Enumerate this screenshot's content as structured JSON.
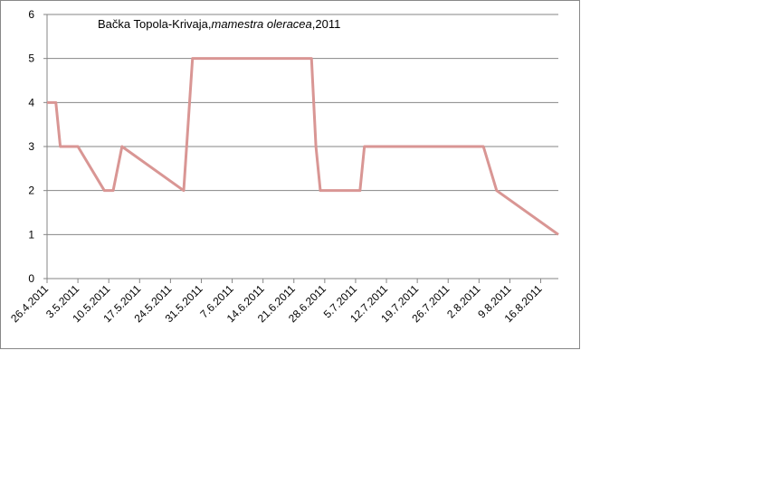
{
  "chart_data": {
    "type": "line",
    "title": [
      {
        "text": "Bačka Topola-Krivaja,",
        "italic": false
      },
      {
        "text": "mamestra oleracea",
        "italic": true
      },
      {
        "text": ",2011",
        "italic": false
      }
    ],
    "x": [
      "26.4.2011",
      "28.4.2011",
      "29.4.2011",
      "3.5.2011",
      "9.5.2011",
      "11.5.2011",
      "13.5.2011",
      "27.5.2011",
      "29.5.2011",
      "25.6.2011",
      "26.6.2011",
      "27.6.2011",
      "6.7.2011",
      "7.7.2011",
      "3.8.2011",
      "6.8.2011",
      "20.8.2011"
    ],
    "series": [
      {
        "color": "#d99694",
        "values": [
          4,
          4,
          3,
          3,
          2,
          2,
          3,
          2,
          5,
          5,
          3,
          2,
          2,
          3,
          3,
          2,
          1
        ]
      }
    ],
    "xlim": [
      "26.4.2011",
      "20.8.2011"
    ],
    "xticks": [
      "26.4.2011",
      "3.5.2011",
      "10.5.2011",
      "17.5.2011",
      "24.5.2011",
      "31.5.2011",
      "7.6.2011",
      "14.6.2011",
      "21.6.2011",
      "28.6.2011",
      "5.7.2011",
      "12.7.2011",
      "19.7.2011",
      "26.7.2011",
      "2.8.2011",
      "9.8.2011",
      "16.8.2011"
    ],
    "ylim": [
      0,
      6
    ],
    "yticks": [
      0,
      1,
      2,
      3,
      4,
      5,
      6
    ],
    "grid": true
  }
}
